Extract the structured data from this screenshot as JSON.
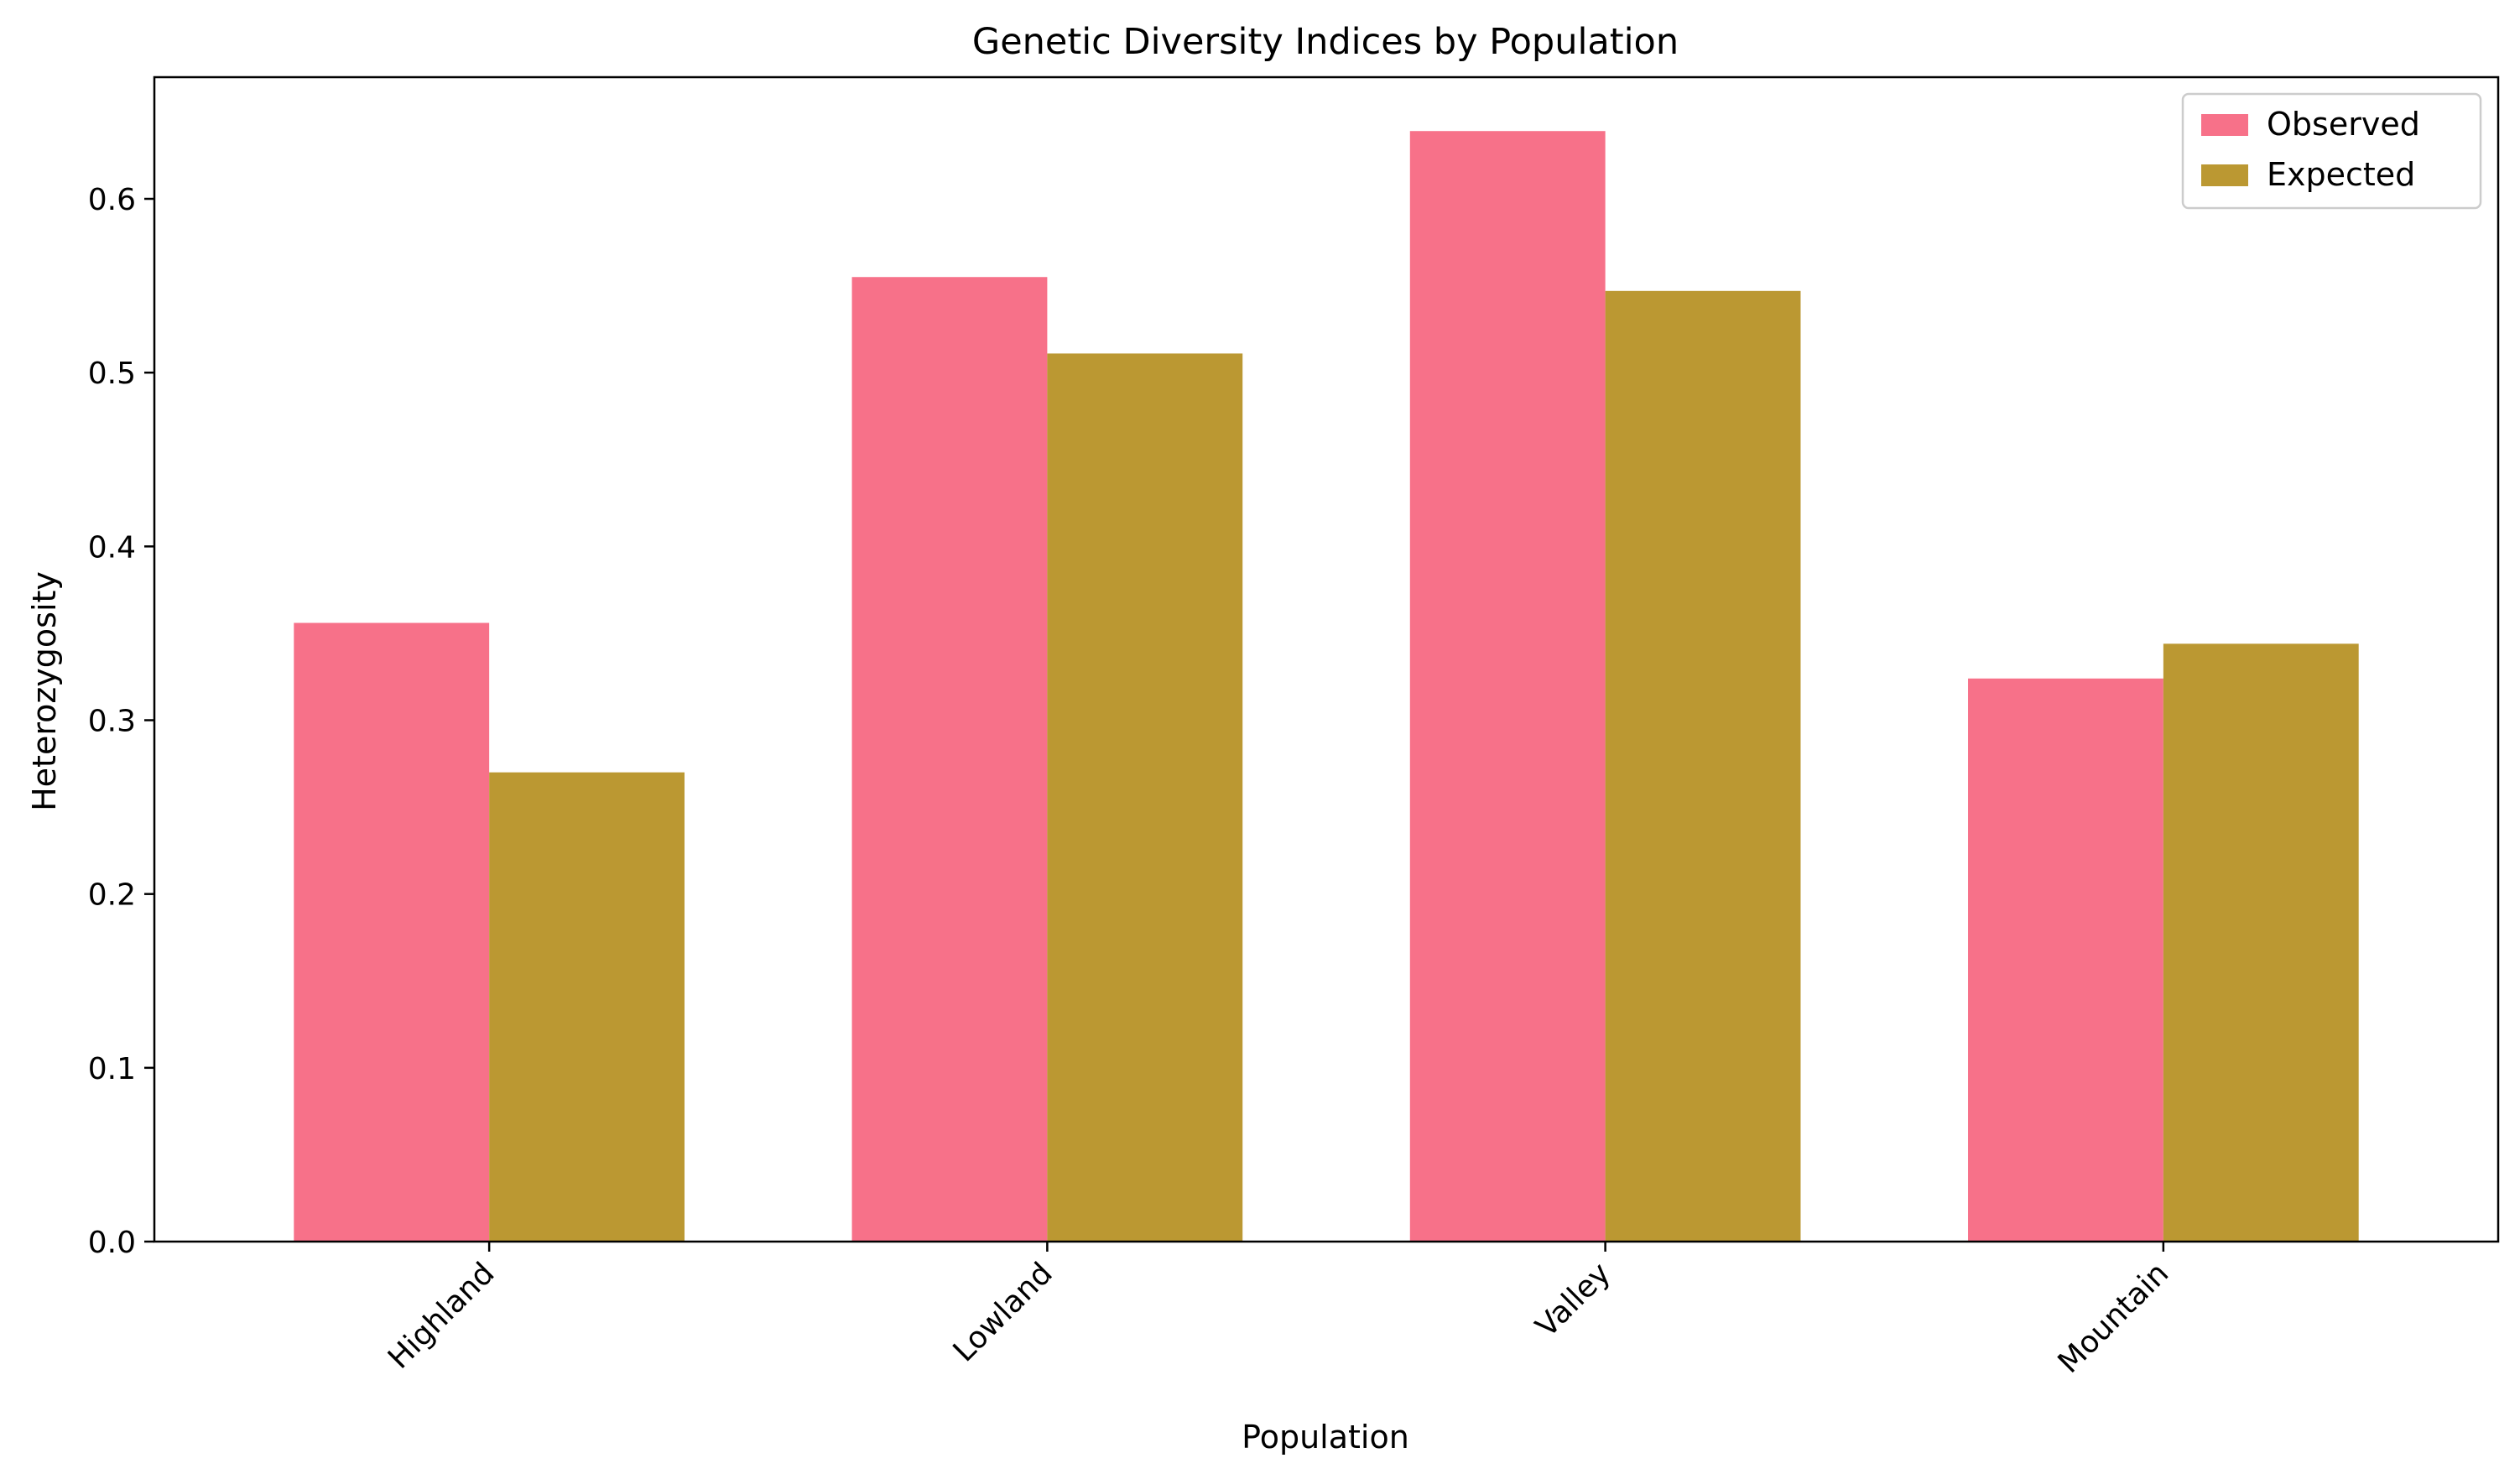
{
  "chart_data": {
    "type": "bar",
    "title": "Genetic Diversity Indices by Population",
    "xlabel": "Population",
    "ylabel": "Heterozygosity",
    "categories": [
      "Highland",
      "Lowland",
      "Valley",
      "Mountain"
    ],
    "series": [
      {
        "name": "Observed",
        "color": "#f77189",
        "values": [
          0.356,
          0.555,
          0.639,
          0.324
        ]
      },
      {
        "name": "Expected",
        "color": "#bb9832",
        "values": [
          0.27,
          0.511,
          0.547,
          0.344
        ]
      }
    ],
    "ylim": [
      0,
      0.67
    ],
    "yticks": [
      "0.0",
      "0.1",
      "0.2",
      "0.3",
      "0.4",
      "0.5",
      "0.6"
    ],
    "grid": false,
    "legend_position": "top-right"
  }
}
